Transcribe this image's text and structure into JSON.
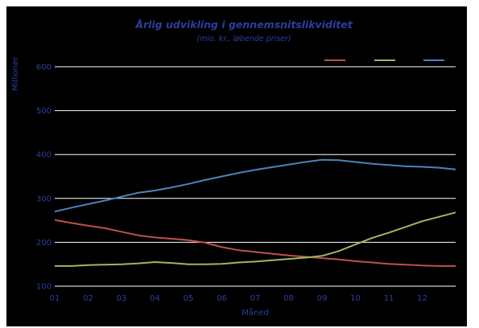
{
  "chart_data": {
    "type": "line",
    "title": "Årlig udvikling i gennemsnitslikviditet",
    "subtitle": "(mio. kr., løbende priser)",
    "xlabel": "Måned",
    "ylabel": "Millioner",
    "categories": [
      "01",
      "02",
      "03",
      "04",
      "05",
      "06",
      "07",
      "08",
      "09",
      "10",
      "11",
      "12"
    ],
    "ylim": [
      100,
      600
    ],
    "yticks": [
      "100",
      "200",
      "300",
      "400",
      "500",
      "600"
    ],
    "grid": true,
    "legend_position": "top-right",
    "series": [
      {
        "color": "#c0504d",
        "points": [
          [
            1,
            251
          ],
          [
            1.5,
            244
          ],
          [
            2,
            238
          ],
          [
            2.5,
            232
          ],
          [
            3,
            224
          ],
          [
            3.5,
            216
          ],
          [
            4,
            211
          ],
          [
            4.5,
            208
          ],
          [
            5,
            205
          ],
          [
            5.5,
            199
          ],
          [
            6,
            189
          ],
          [
            6.5,
            182
          ],
          [
            7,
            178
          ],
          [
            7.5,
            174
          ],
          [
            8,
            170
          ],
          [
            8.5,
            167
          ],
          [
            9,
            164
          ],
          [
            9.5,
            161
          ],
          [
            10,
            157
          ],
          [
            10.5,
            154
          ],
          [
            11,
            151
          ],
          [
            11.5,
            149
          ],
          [
            12,
            147
          ],
          [
            12.5,
            146
          ],
          [
            13,
            146
          ]
        ]
      },
      {
        "color": "#9bbb59",
        "points": [
          [
            1,
            146
          ],
          [
            1.5,
            146
          ],
          [
            2,
            148
          ],
          [
            2.5,
            149
          ],
          [
            3,
            150
          ],
          [
            3.5,
            152
          ],
          [
            4,
            155
          ],
          [
            4.5,
            153
          ],
          [
            5,
            150
          ],
          [
            5.5,
            150
          ],
          [
            6,
            151
          ],
          [
            6.5,
            154
          ],
          [
            7,
            156
          ],
          [
            7.5,
            159
          ],
          [
            8,
            162
          ],
          [
            8.5,
            165
          ],
          [
            9,
            169
          ],
          [
            9.5,
            180
          ],
          [
            10,
            195
          ],
          [
            10.5,
            210
          ],
          [
            11,
            222
          ],
          [
            11.5,
            235
          ],
          [
            12,
            248
          ],
          [
            12.5,
            258
          ],
          [
            13,
            268
          ]
        ]
      },
      {
        "color": "#4f81bd",
        "points": [
          [
            1,
            270
          ],
          [
            1.5,
            279
          ],
          [
            2,
            287
          ],
          [
            2.5,
            295
          ],
          [
            3,
            304
          ],
          [
            3.5,
            313
          ],
          [
            4,
            318
          ],
          [
            4.5,
            325
          ],
          [
            5,
            333
          ],
          [
            5.5,
            342
          ],
          [
            6,
            350
          ],
          [
            6.5,
            358
          ],
          [
            7,
            365
          ],
          [
            7.5,
            371
          ],
          [
            8,
            377
          ],
          [
            8.5,
            383
          ],
          [
            9,
            388
          ],
          [
            9.5,
            387
          ],
          [
            10,
            383
          ],
          [
            10.5,
            379
          ],
          [
            11,
            376
          ],
          [
            11.5,
            373
          ],
          [
            12,
            372
          ],
          [
            12.5,
            370
          ],
          [
            13,
            366
          ]
        ]
      }
    ]
  }
}
